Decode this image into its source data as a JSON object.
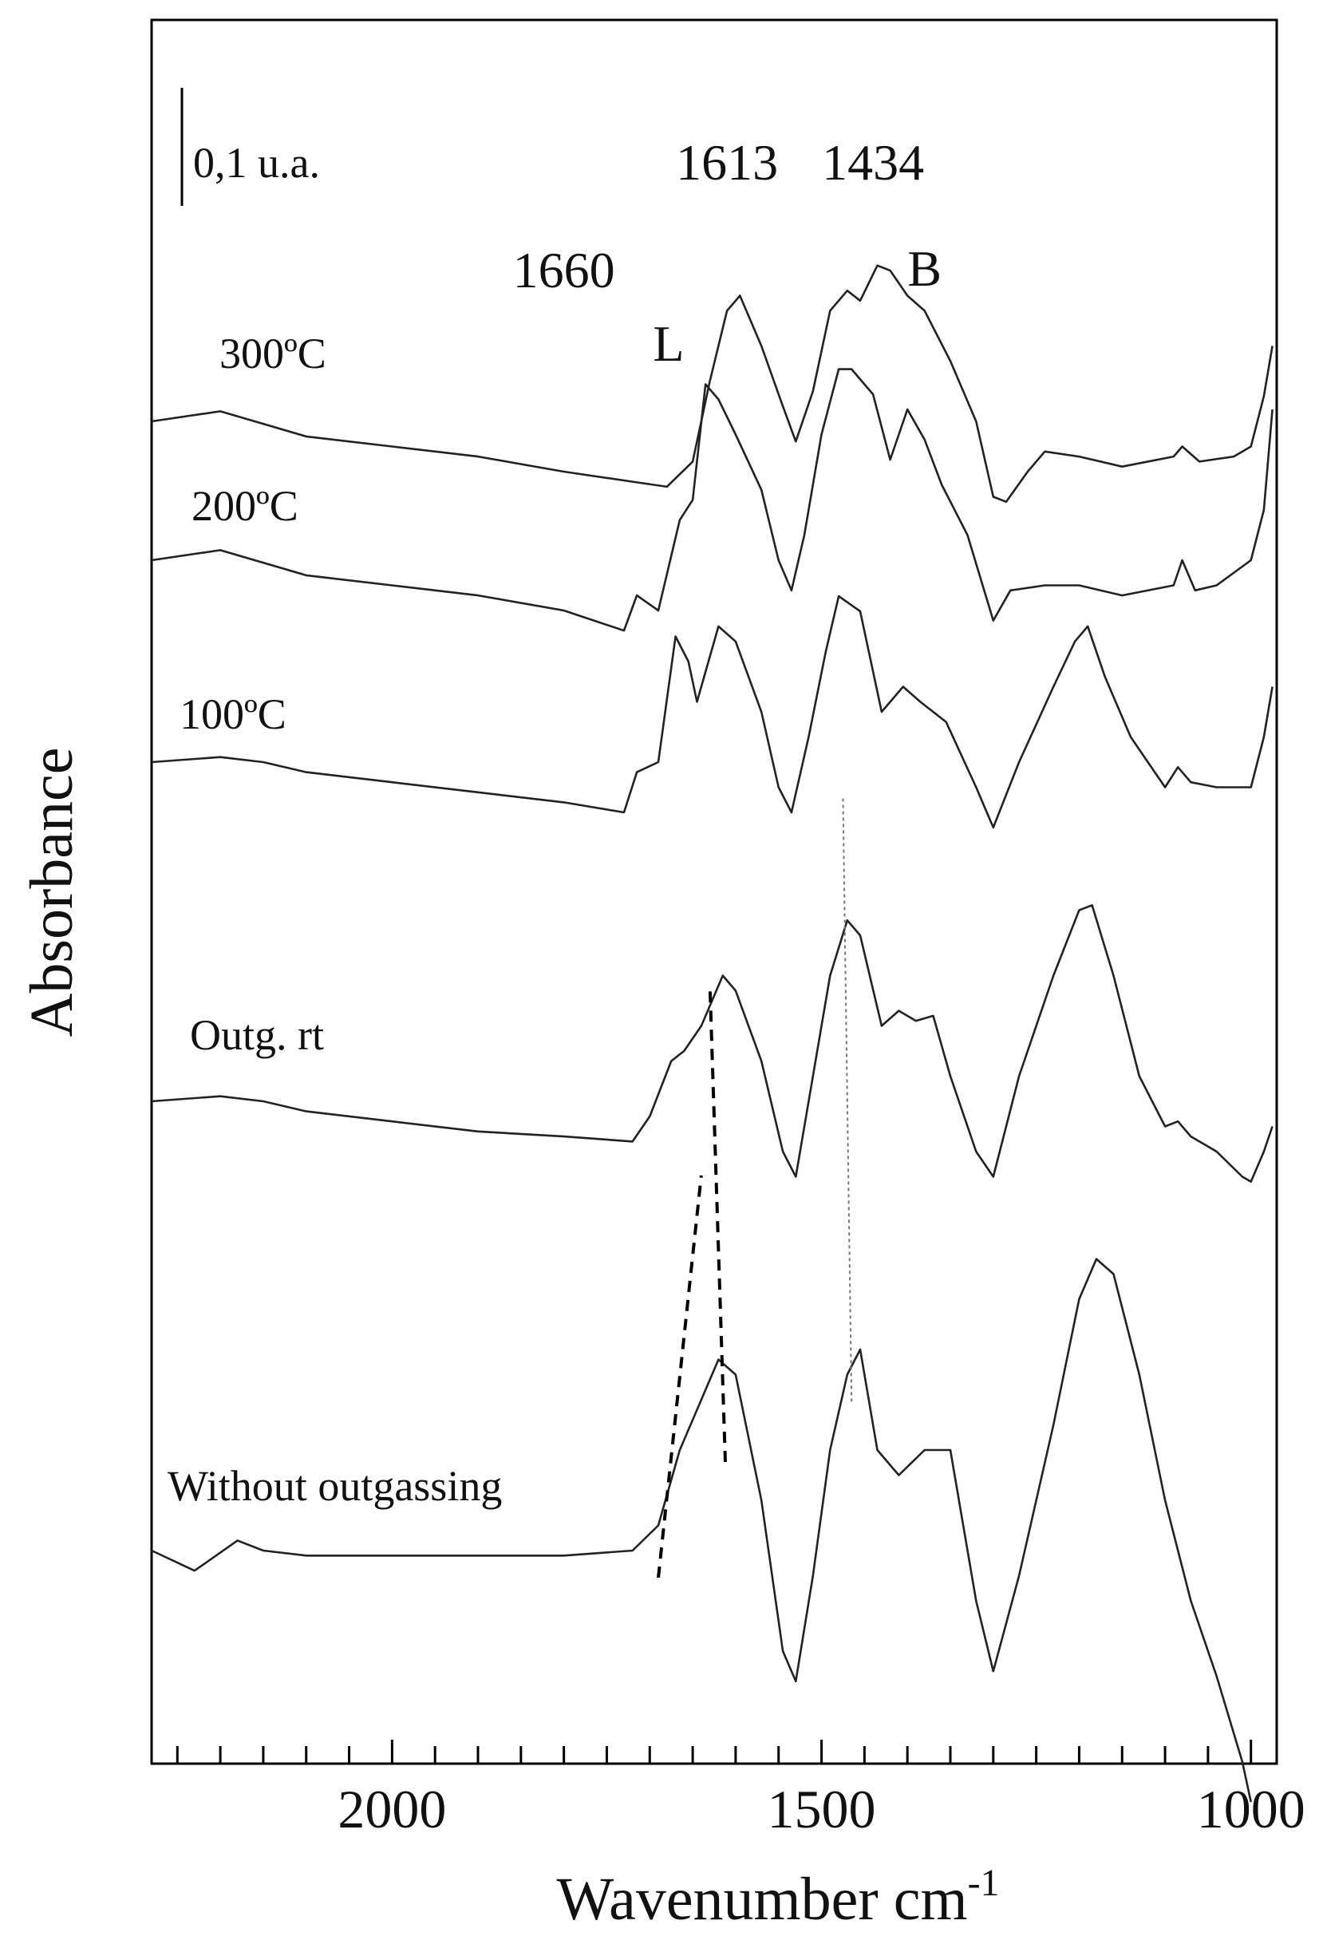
{
  "chart_data": {
    "type": "line",
    "title": "",
    "xlabel": "Wavenumber  cm",
    "xlabel_superscript": "-1",
    "ylabel": "Absorbance",
    "xlim": [
      2280,
      970
    ],
    "x_reversed": true,
    "x_ticks": [
      {
        "value": 2000,
        "label": "2000"
      },
      {
        "value": 1500,
        "label": "1500"
      },
      {
        "value": 1000,
        "label": "1000"
      }
    ],
    "x_minor_step": 50,
    "grid": false,
    "legend": "none",
    "scale_bar_label": "0,1 u.a.",
    "peak_labels": [
      {
        "text": "1660",
        "x": 1800
      },
      {
        "text": "1613",
        "x": 1610
      },
      {
        "text": "1434",
        "x": 1440
      }
    ],
    "band_labels": [
      {
        "text": "L",
        "x": 1678
      },
      {
        "text": "B",
        "x": 1380
      }
    ],
    "series": [
      {
        "name": "300ºC",
        "points": [
          [
            2280,
            0.0
          ],
          [
            2200,
            0.02
          ],
          [
            2100,
            -0.03
          ],
          [
            2000,
            -0.05
          ],
          [
            1900,
            -0.07
          ],
          [
            1800,
            -0.1
          ],
          [
            1720,
            -0.12
          ],
          [
            1680,
            -0.13
          ],
          [
            1650,
            -0.08
          ],
          [
            1630,
            0.08
          ],
          [
            1610,
            0.22
          ],
          [
            1595,
            0.25
          ],
          [
            1570,
            0.15
          ],
          [
            1545,
            0.03
          ],
          [
            1530,
            -0.04
          ],
          [
            1510,
            0.06
          ],
          [
            1490,
            0.22
          ],
          [
            1470,
            0.26
          ],
          [
            1455,
            0.24
          ],
          [
            1435,
            0.31
          ],
          [
            1420,
            0.3
          ],
          [
            1400,
            0.25
          ],
          [
            1380,
            0.22
          ],
          [
            1350,
            0.12
          ],
          [
            1320,
            0.0
          ],
          [
            1300,
            -0.15
          ],
          [
            1285,
            -0.16
          ],
          [
            1260,
            -0.1
          ],
          [
            1240,
            -0.06
          ],
          [
            1200,
            -0.07
          ],
          [
            1150,
            -0.09
          ],
          [
            1090,
            -0.07
          ],
          [
            1080,
            -0.05
          ],
          [
            1060,
            -0.08
          ],
          [
            1020,
            -0.07
          ],
          [
            1000,
            -0.05
          ],
          [
            985,
            0.05
          ],
          [
            975,
            0.15
          ]
        ]
      },
      {
        "name": "200ºC",
        "points": [
          [
            2280,
            0.0
          ],
          [
            2200,
            0.02
          ],
          [
            2100,
            -0.03
          ],
          [
            2000,
            -0.05
          ],
          [
            1900,
            -0.07
          ],
          [
            1800,
            -0.1
          ],
          [
            1730,
            -0.14
          ],
          [
            1715,
            -0.07
          ],
          [
            1690,
            -0.1
          ],
          [
            1665,
            0.08
          ],
          [
            1650,
            0.12
          ],
          [
            1635,
            0.35
          ],
          [
            1620,
            0.32
          ],
          [
            1600,
            0.25
          ],
          [
            1570,
            0.14
          ],
          [
            1550,
            0.0
          ],
          [
            1535,
            -0.06
          ],
          [
            1520,
            0.05
          ],
          [
            1500,
            0.25
          ],
          [
            1480,
            0.38
          ],
          [
            1465,
            0.38
          ],
          [
            1440,
            0.33
          ],
          [
            1420,
            0.2
          ],
          [
            1400,
            0.3
          ],
          [
            1380,
            0.24
          ],
          [
            1360,
            0.15
          ],
          [
            1330,
            0.05
          ],
          [
            1300,
            -0.12
          ],
          [
            1280,
            -0.06
          ],
          [
            1240,
            -0.05
          ],
          [
            1200,
            -0.05
          ],
          [
            1150,
            -0.07
          ],
          [
            1090,
            -0.05
          ],
          [
            1080,
            0.0
          ],
          [
            1065,
            -0.06
          ],
          [
            1040,
            -0.05
          ],
          [
            1000,
            0.0
          ],
          [
            985,
            0.1
          ],
          [
            975,
            0.3
          ]
        ]
      },
      {
        "name": "100ºC",
        "points": [
          [
            2280,
            0.0
          ],
          [
            2200,
            0.01
          ],
          [
            2150,
            0.0
          ],
          [
            2100,
            -0.02
          ],
          [
            2000,
            -0.04
          ],
          [
            1900,
            -0.06
          ],
          [
            1800,
            -0.08
          ],
          [
            1730,
            -0.1
          ],
          [
            1715,
            -0.02
          ],
          [
            1690,
            0.0
          ],
          [
            1670,
            0.25
          ],
          [
            1655,
            0.2
          ],
          [
            1645,
            0.12
          ],
          [
            1620,
            0.27
          ],
          [
            1600,
            0.24
          ],
          [
            1570,
            0.1
          ],
          [
            1550,
            -0.05
          ],
          [
            1535,
            -0.1
          ],
          [
            1515,
            0.05
          ],
          [
            1495,
            0.22
          ],
          [
            1480,
            0.33
          ],
          [
            1455,
            0.3
          ],
          [
            1430,
            0.1
          ],
          [
            1405,
            0.15
          ],
          [
            1385,
            0.12
          ],
          [
            1355,
            0.08
          ],
          [
            1320,
            -0.05
          ],
          [
            1300,
            -0.13
          ],
          [
            1270,
            0.0
          ],
          [
            1230,
            0.15
          ],
          [
            1205,
            0.24
          ],
          [
            1190,
            0.27
          ],
          [
            1170,
            0.17
          ],
          [
            1140,
            0.05
          ],
          [
            1100,
            -0.05
          ],
          [
            1085,
            -0.01
          ],
          [
            1070,
            -0.04
          ],
          [
            1040,
            -0.05
          ],
          [
            1000,
            -0.05
          ],
          [
            985,
            0.05
          ],
          [
            975,
            0.15
          ]
        ]
      },
      {
        "name": "Outg. rt",
        "points": [
          [
            2280,
            0.0
          ],
          [
            2200,
            0.01
          ],
          [
            2150,
            0.0
          ],
          [
            2100,
            -0.02
          ],
          [
            2000,
            -0.04
          ],
          [
            1900,
            -0.06
          ],
          [
            1800,
            -0.07
          ],
          [
            1720,
            -0.08
          ],
          [
            1700,
            -0.03
          ],
          [
            1675,
            0.08
          ],
          [
            1660,
            0.1
          ],
          [
            1640,
            0.15
          ],
          [
            1615,
            0.25
          ],
          [
            1600,
            0.22
          ],
          [
            1570,
            0.08
          ],
          [
            1545,
            -0.1
          ],
          [
            1530,
            -0.15
          ],
          [
            1510,
            0.05
          ],
          [
            1490,
            0.25
          ],
          [
            1470,
            0.36
          ],
          [
            1455,
            0.33
          ],
          [
            1430,
            0.15
          ],
          [
            1410,
            0.18
          ],
          [
            1390,
            0.16
          ],
          [
            1370,
            0.17
          ],
          [
            1350,
            0.05
          ],
          [
            1320,
            -0.1
          ],
          [
            1300,
            -0.15
          ],
          [
            1270,
            0.05
          ],
          [
            1230,
            0.25
          ],
          [
            1200,
            0.38
          ],
          [
            1185,
            0.39
          ],
          [
            1160,
            0.25
          ],
          [
            1130,
            0.05
          ],
          [
            1100,
            -0.05
          ],
          [
            1085,
            -0.04
          ],
          [
            1070,
            -0.07
          ],
          [
            1040,
            -0.1
          ],
          [
            1010,
            -0.15
          ],
          [
            1000,
            -0.16
          ],
          [
            985,
            -0.1
          ],
          [
            975,
            -0.05
          ]
        ]
      },
      {
        "name": "Without outgassing",
        "points": [
          [
            2280,
            0.0
          ],
          [
            2230,
            -0.04
          ],
          [
            2180,
            0.02
          ],
          [
            2150,
            0.0
          ],
          [
            2100,
            -0.01
          ],
          [
            2000,
            -0.01
          ],
          [
            1900,
            -0.01
          ],
          [
            1800,
            -0.01
          ],
          [
            1720,
            0.0
          ],
          [
            1690,
            0.05
          ],
          [
            1665,
            0.2
          ],
          [
            1640,
            0.3
          ],
          [
            1620,
            0.38
          ],
          [
            1600,
            0.35
          ],
          [
            1570,
            0.1
          ],
          [
            1545,
            -0.2
          ],
          [
            1530,
            -0.26
          ],
          [
            1510,
            -0.05
          ],
          [
            1490,
            0.2
          ],
          [
            1470,
            0.35
          ],
          [
            1455,
            0.4
          ],
          [
            1435,
            0.2
          ],
          [
            1410,
            0.15
          ],
          [
            1380,
            0.2
          ],
          [
            1350,
            0.2
          ],
          [
            1320,
            -0.1
          ],
          [
            1300,
            -0.24
          ],
          [
            1270,
            -0.05
          ],
          [
            1230,
            0.25
          ],
          [
            1200,
            0.5
          ],
          [
            1180,
            0.58
          ],
          [
            1160,
            0.55
          ],
          [
            1130,
            0.35
          ],
          [
            1100,
            0.1
          ],
          [
            1070,
            -0.1
          ],
          [
            1040,
            -0.25
          ],
          [
            1010,
            -0.42
          ],
          [
            1000,
            -0.5
          ]
        ]
      }
    ],
    "guide_lines": [
      {
        "style": "dashed",
        "from": [
          1690,
          -0.03
        ],
        "to": [
          1640,
          0.77
        ]
      },
      {
        "style": "dashed",
        "from": [
          1612,
          0.2
        ],
        "to": [
          1630,
          1.15
        ]
      },
      {
        "style": "dotted",
        "from": [
          1465,
          0.32
        ],
        "to": [
          1475,
          1.52
        ]
      }
    ]
  }
}
